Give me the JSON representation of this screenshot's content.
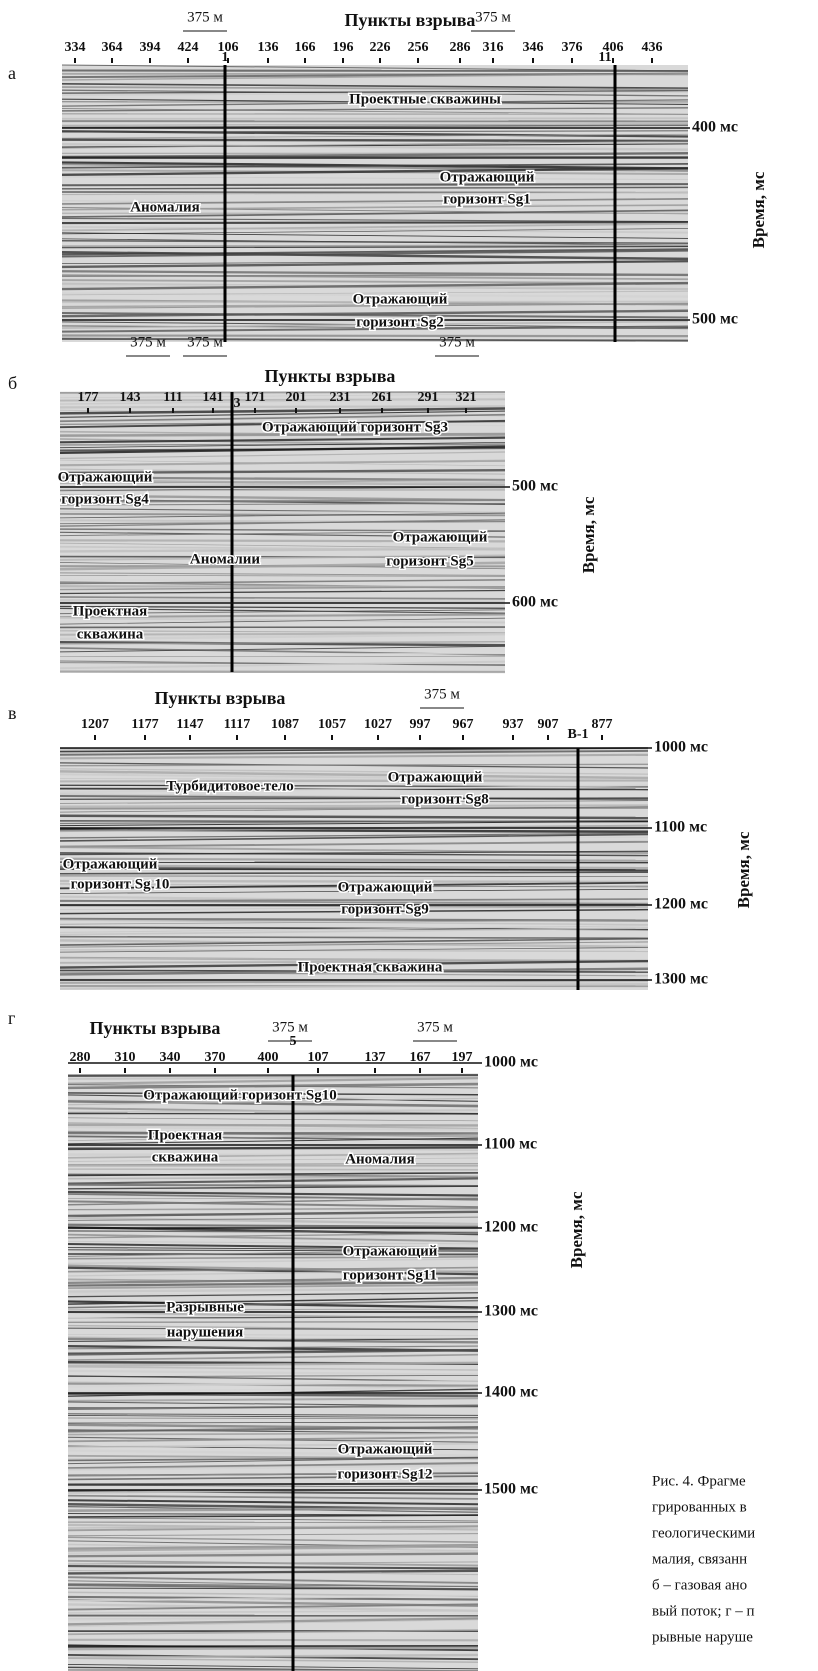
{
  "panels": [
    {
      "letter": "а",
      "axis_title": "Пункты взрыва",
      "scale_labels": [
        "375 м",
        "375 м"
      ],
      "shotpoints": [
        "334",
        "364",
        "394",
        "424",
        "106",
        "136",
        "166",
        "196",
        "226",
        "256",
        "286",
        "316",
        "346",
        "376",
        "406",
        "436"
      ],
      "wells": [
        "1",
        "11"
      ],
      "time_labels": [
        "400 мс",
        "500 мс"
      ],
      "time_title": "Время, мс",
      "annotations": [
        "Проектные скважины",
        "Аномалия",
        "Отражающий",
        "горизонт Sg1",
        "Отражающий",
        "горизонт Sg2"
      ]
    },
    {
      "letter": "б",
      "axis_title": "Пункты взрыва",
      "scale_labels": [
        "375 м",
        "375 м",
        "375 м"
      ],
      "shotpoints": [
        "177",
        "143",
        "111",
        "141",
        "171",
        "201",
        "231",
        "261",
        "291",
        "321"
      ],
      "wells": [
        "3"
      ],
      "time_labels": [
        "500 мс",
        "600 мс"
      ],
      "time_title": "Время, мс",
      "annotations": [
        "Отражающий горизонт Sg3",
        "Отражающий",
        "горизонт Sg4",
        "Отражающий",
        "горизонт Sg5",
        "Аномалии",
        "Проектная",
        "скважина"
      ]
    },
    {
      "letter": "в",
      "axis_title": "Пункты взрыва",
      "scale_labels": [
        "375 м"
      ],
      "shotpoints": [
        "1207",
        "1177",
        "1147",
        "1117",
        "1087",
        "1057",
        "1027",
        "997",
        "967",
        "937",
        "907",
        "877"
      ],
      "wells": [
        "В-1"
      ],
      "time_labels": [
        "1000 мс",
        "1100 мс",
        "1200 мс",
        "1300 мс"
      ],
      "time_title": "Время, мс",
      "annotations": [
        "Турбидитовое тело",
        "Отражающий",
        "горизонт Sg8",
        "Отражающий",
        "горизонт Sg 10",
        "Отражающий",
        "горизонт Sg9",
        "Проектная скважина"
      ]
    },
    {
      "letter": "г",
      "axis_title": "Пункты взрыва",
      "scale_labels": [
        "375 м",
        "375 м"
      ],
      "shotpoints": [
        "280",
        "310",
        "340",
        "370",
        "400",
        "107",
        "137",
        "167",
        "197"
      ],
      "wells": [
        "5"
      ],
      "time_labels": [
        "1000 мс",
        "1100 мс",
        "1200 мс",
        "1300 мс",
        "1400 мс",
        "1500 мс"
      ],
      "time_title": "Время, мс",
      "annotations": [
        "Отражающий горизонт Sg10",
        "Проектная",
        "скважина",
        "Аномалия",
        "Отражающий",
        "горизонт Sg11",
        "Разрывные",
        "нарушения",
        "Отражающий",
        "горизонт Sg12"
      ]
    }
  ],
  "caption": [
    "Рис. 4. Фрагме",
    "грированных в",
    "геологическими",
    "малия, связанн",
    "б – газовая ано",
    "вый поток; г – п",
    "рывные наруше"
  ]
}
